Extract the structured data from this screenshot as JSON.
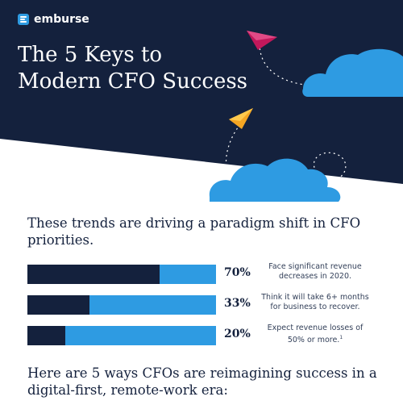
{
  "brand": {
    "name": "emburse"
  },
  "hero": {
    "title_line1": "The 5 Keys to",
    "title_line2": "Modern CFO Success"
  },
  "intro": {
    "text": "These trends are driving a paradigm shift in CFO priorities."
  },
  "stats": [
    {
      "value": 70,
      "percent_label": "70%",
      "line1": "Face significant revenue",
      "line2": "decreases in 2020.",
      "footnote": ""
    },
    {
      "value": 33,
      "percent_label": "33%",
      "line1": "Think it will take 6+ months",
      "line2": "for business to recover.",
      "footnote": ""
    },
    {
      "value": 20,
      "percent_label": "20%",
      "line1": "Expect revenue losses of",
      "line2": "50% or more.",
      "footnote": "1"
    }
  ],
  "outro": {
    "text": "Here are 5 ways CFOs are reimagining success in a digital-first, remote-work era:"
  },
  "colors": {
    "navy": "#14213d",
    "blue": "#2e9be2",
    "magenta": "#c2185b",
    "orange": "#f5a623"
  }
}
